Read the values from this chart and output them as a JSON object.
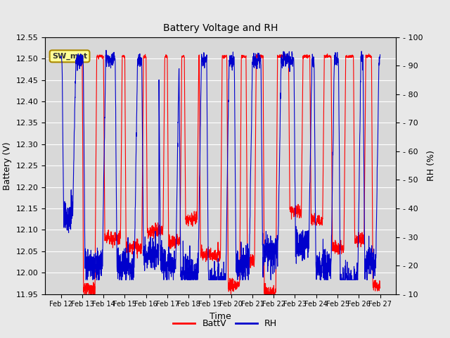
{
  "title": "Battery Voltage and RH",
  "xlabel": "Time",
  "ylabel_left": "Battery (V)",
  "ylabel_right": "RH (%)",
  "annotation": "SW_met",
  "ylim_left": [
    11.95,
    12.55
  ],
  "ylim_right": [
    10,
    100
  ],
  "yticks_left": [
    11.95,
    12.0,
    12.05,
    12.1,
    12.15,
    12.2,
    12.25,
    12.3,
    12.35,
    12.4,
    12.45,
    12.5,
    12.55
  ],
  "yticks_right": [
    10,
    20,
    30,
    40,
    50,
    60,
    70,
    80,
    90,
    100
  ],
  "x_tick_labels": [
    "Feb 12",
    "Feb 13",
    "Feb 14",
    "Feb 15",
    "Feb 16",
    "Feb 17",
    "Feb 18",
    "Feb 19",
    "Feb 20",
    "Feb 21",
    "Feb 22",
    "Feb 23",
    "Feb 24",
    "Feb 25",
    "Feb 26",
    "Feb 27"
  ],
  "battv_color": "#FF0000",
  "rh_color": "#0000CC",
  "background_color": "#E8E8E8",
  "plot_bg_color": "#D8D8D8",
  "legend_battv": "BattV",
  "legend_rh": "RH",
  "grid_color": "#FFFFFF",
  "annotation_bg": "#FFFF99",
  "annotation_edge": "#AA8800",
  "n_points": 2000
}
